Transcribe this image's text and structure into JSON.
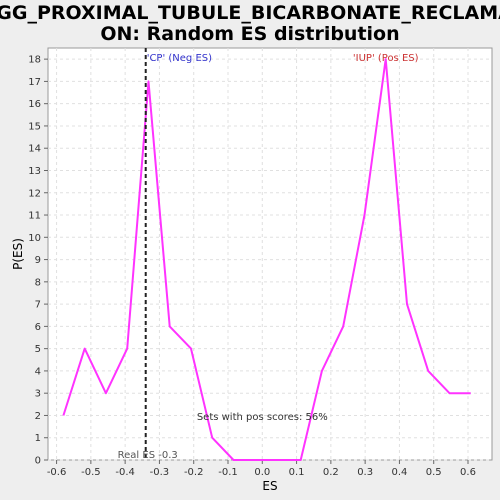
{
  "chart_data": {
    "type": "line",
    "title_line1": "KEGG_PROXIMAL_TUBULE_BICARBONATE_RECLAMATI",
    "title_line2": "ON: Random ES distribution",
    "xlabel": "ES",
    "ylabel": "P(ES)",
    "xlim": [
      -0.625,
      0.67
    ],
    "ylim": [
      0,
      18.5
    ],
    "xticks": [
      "-0.6",
      "-0.5",
      "-0.4",
      "-0.3",
      "-0.2",
      "-0.1",
      "0.0",
      "0.1",
      "0.2",
      "0.3",
      "0.4",
      "0.5",
      "0.6"
    ],
    "xtick_values": [
      -0.6,
      -0.5,
      -0.4,
      -0.3,
      -0.2,
      -0.1,
      0.0,
      0.1,
      0.2,
      0.3,
      0.4,
      0.5,
      0.6
    ],
    "yticks": [
      "0",
      "1",
      "2",
      "3",
      "4",
      "5",
      "6",
      "7",
      "8",
      "9",
      "10",
      "11",
      "12",
      "13",
      "14",
      "15",
      "16",
      "17",
      "18"
    ],
    "ytick_values": [
      0,
      1,
      2,
      3,
      4,
      5,
      6,
      7,
      8,
      9,
      10,
      11,
      12,
      13,
      14,
      15,
      16,
      17,
      18
    ],
    "grid": true,
    "series": [
      {
        "color": "#ff33ff",
        "x": [
          -0.58,
          -0.518,
          -0.456,
          -0.394,
          -0.332,
          -0.27,
          -0.208,
          -0.146,
          -0.084,
          -0.022,
          0.04,
          0.112,
          0.174,
          0.236,
          0.298,
          0.36,
          0.422,
          0.484,
          0.546,
          0.608
        ],
        "y": [
          2,
          5,
          3,
          5,
          17,
          6,
          5,
          1,
          0,
          0,
          0,
          0,
          4,
          6,
          11,
          18,
          7,
          4,
          3,
          3
        ]
      }
    ],
    "real_es": -0.34,
    "annotations": {
      "neg_label": "'CP' (Neg ES)",
      "pos_label": "'IUP' (Pos ES)",
      "real_es_label": "Real ES -0.3",
      "sets_label": "Sets with pos scores: 56%"
    },
    "colors": {
      "neg": "#3333cc",
      "pos": "#cc3333",
      "line": "#ff33ff",
      "grid": "#e0e0e0"
    }
  }
}
